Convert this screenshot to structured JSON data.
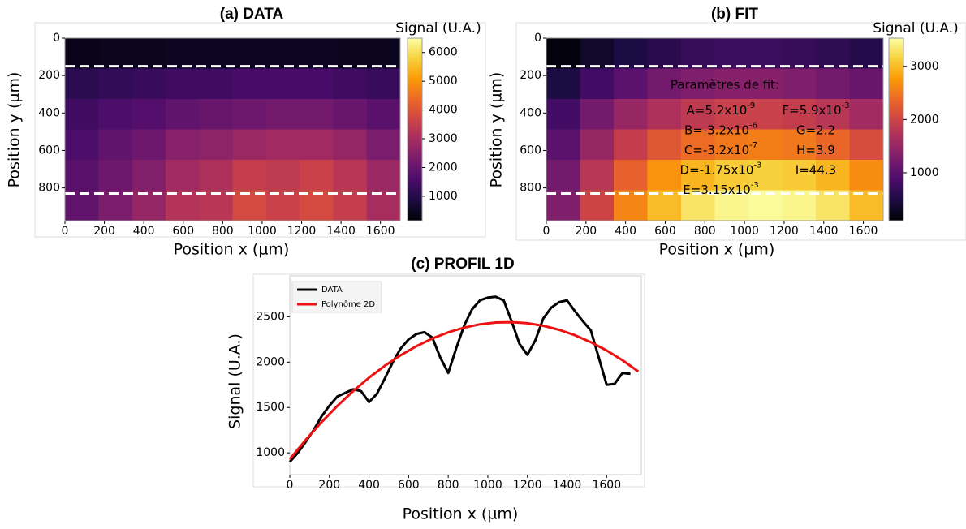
{
  "chart_data": [
    {
      "type": "heatmap",
      "title": "(a) DATA",
      "x_label": "Position x (µm)",
      "y_label": "Position y (µm)",
      "colorbar_label": "Signal (U.A.)",
      "xlim": [
        0,
        1700
      ],
      "ylim": [
        975,
        0
      ],
      "xticks": [
        0,
        200,
        400,
        600,
        800,
        1000,
        1200,
        1400,
        1600
      ],
      "yticks": [
        0,
        200,
        400,
        600,
        800
      ],
      "clim": [
        150,
        6500
      ],
      "cticks": [
        1000,
        2000,
        3000,
        4000,
        5000,
        6000
      ],
      "colormap": [
        "#000004",
        "#1b0c41",
        "#4a0c6b",
        "#781c6d",
        "#a52c60",
        "#cf4446",
        "#ed6925",
        "#fb9b06",
        "#f7d13d",
        "#fcffa4"
      ],
      "hlines": [
        150,
        830
      ],
      "hline_color": "#ffffff",
      "z": [
        [
          400,
          450,
          450,
          500,
          500,
          500,
          500,
          500,
          450,
          450
        ],
        [
          1100,
          1200,
          1300,
          1400,
          1400,
          1500,
          1500,
          1500,
          1400,
          1300
        ],
        [
          1400,
          1600,
          1700,
          1900,
          2000,
          2100,
          2200,
          2200,
          2000,
          1800
        ],
        [
          1600,
          1900,
          2100,
          2500,
          2600,
          2800,
          2900,
          2900,
          2700,
          2300
        ],
        [
          1800,
          2100,
          2400,
          2900,
          3100,
          3500,
          3400,
          3600,
          3300,
          2800
        ],
        [
          1900,
          2300,
          2700,
          3200,
          3300,
          3800,
          3600,
          3800,
          3500,
          3000
        ]
      ]
    },
    {
      "type": "heatmap",
      "title": "(b) FIT",
      "x_label": "Position x (µm)",
      "y_label": "Position y (µm)",
      "colorbar_label": "Signal (U.A.)",
      "xlim": [
        0,
        1700
      ],
      "ylim": [
        975,
        0
      ],
      "xticks": [
        0,
        200,
        400,
        600,
        800,
        1000,
        1200,
        1400,
        1600
      ],
      "yticks": [
        0,
        200,
        400,
        600,
        800
      ],
      "clim": [
        100,
        3530
      ],
      "cticks": [
        1000,
        2000,
        3000
      ],
      "colormap": [
        "#000004",
        "#1b0c41",
        "#4a0c6b",
        "#781c6d",
        "#a52c60",
        "#cf4446",
        "#ed6925",
        "#fb9b06",
        "#f7d13d",
        "#fcffa4"
      ],
      "hlines": [
        150,
        830
      ],
      "hline_color": "#ffffff",
      "z": [
        [
          150,
          350,
          500,
          600,
          700,
          750,
          750,
          700,
          650,
          550
        ],
        [
          500,
          800,
          1000,
          1200,
          1300,
          1350,
          1350,
          1300,
          1200,
          1100
        ],
        [
          800,
          1200,
          1500,
          1700,
          1850,
          1950,
          1950,
          1900,
          1800,
          1600
        ],
        [
          1000,
          1500,
          1900,
          2200,
          2400,
          2500,
          2550,
          2500,
          2350,
          2100
        ],
        [
          1200,
          1800,
          2300,
          2700,
          2950,
          3100,
          3150,
          3100,
          2950,
          2650
        ],
        [
          1300,
          2000,
          2600,
          3000,
          3300,
          3450,
          3500,
          3450,
          3300,
          3000
        ]
      ],
      "annotations": {
        "heading": "Paramètres de fit:",
        "left": [
          {
            "text": "A=5.2x10",
            "sup": "-9"
          },
          {
            "text": "B=-3.2x10",
            "sup": "-6"
          },
          {
            "text": "C=-3.2x10",
            "sup": "-7"
          },
          {
            "text": "D=-1.75x10",
            "sup": "-3"
          },
          {
            "text": "E=3.15x10",
            "sup": "-3"
          }
        ],
        "right": [
          {
            "text": "F=5.9x10",
            "sup": "-3"
          },
          {
            "text": "G=2.2"
          },
          {
            "text": "H=3.9"
          },
          {
            "text": "I=44.3"
          }
        ]
      }
    },
    {
      "type": "line",
      "title": "(c) PROFIL 1D",
      "x_label": "Position x (µm)",
      "y_label": "Signal (U.A.)",
      "xlim": [
        0,
        1775
      ],
      "ylim": [
        760,
        2950
      ],
      "xticks": [
        0,
        200,
        400,
        600,
        800,
        1000,
        1200,
        1400,
        1600
      ],
      "yticks": [
        1000,
        1500,
        2000,
        2500
      ],
      "legend": "upper left",
      "series": [
        {
          "name": "DATA",
          "color": "#000000",
          "x": [
            0,
            40,
            80,
            120,
            160,
            200,
            240,
            280,
            320,
            360,
            400,
            440,
            480,
            520,
            560,
            600,
            640,
            680,
            720,
            760,
            800,
            840,
            880,
            920,
            960,
            1000,
            1040,
            1080,
            1120,
            1160,
            1200,
            1240,
            1280,
            1320,
            1360,
            1400,
            1440,
            1480,
            1520,
            1560,
            1600,
            1640,
            1680,
            1720
          ],
          "values": [
            900,
            1000,
            1120,
            1250,
            1400,
            1520,
            1620,
            1660,
            1700,
            1680,
            1560,
            1650,
            1820,
            2000,
            2150,
            2250,
            2310,
            2330,
            2270,
            2050,
            1880,
            2150,
            2400,
            2580,
            2680,
            2710,
            2720,
            2680,
            2450,
            2200,
            2080,
            2240,
            2480,
            2600,
            2660,
            2680,
            2560,
            2450,
            2350,
            2050,
            1750,
            1760,
            1880,
            1870
          ]
        },
        {
          "name": "Polynôme 2D",
          "color": "#ee1111",
          "x": [
            0,
            80,
            160,
            240,
            320,
            400,
            480,
            560,
            640,
            720,
            800,
            880,
            960,
            1040,
            1120,
            1200,
            1280,
            1360,
            1440,
            1520,
            1600,
            1680,
            1760
          ],
          "values": [
            930,
            1142,
            1337,
            1517,
            1681,
            1828,
            1960,
            2076,
            2176,
            2260,
            2328,
            2380,
            2416,
            2436,
            2440,
            2428,
            2400,
            2356,
            2296,
            2220,
            2128,
            2020,
            1896
          ]
        }
      ]
    }
  ]
}
